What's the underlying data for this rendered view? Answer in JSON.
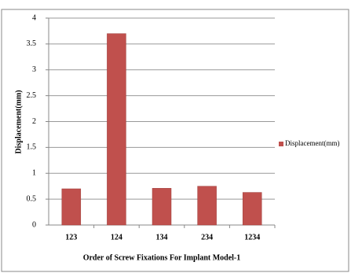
{
  "chart_data": {
    "type": "bar",
    "x_label": "Order of Screw Fixations For Implant Model-1",
    "y_label": "Displacement(mm)",
    "categories": [
      "123",
      "124",
      "134",
      "234",
      "1234"
    ],
    "series": [
      {
        "name": "Displacement(mm)",
        "color": "#c0504d",
        "values": [
          0.7,
          3.7,
          0.71,
          0.75,
          0.63
        ]
      }
    ],
    "ylim": [
      0,
      4
    ],
    "yticks": [
      0,
      0.5,
      1,
      1.5,
      2,
      2.5,
      3,
      3.5,
      4
    ],
    "grid": true,
    "legend": "right"
  }
}
